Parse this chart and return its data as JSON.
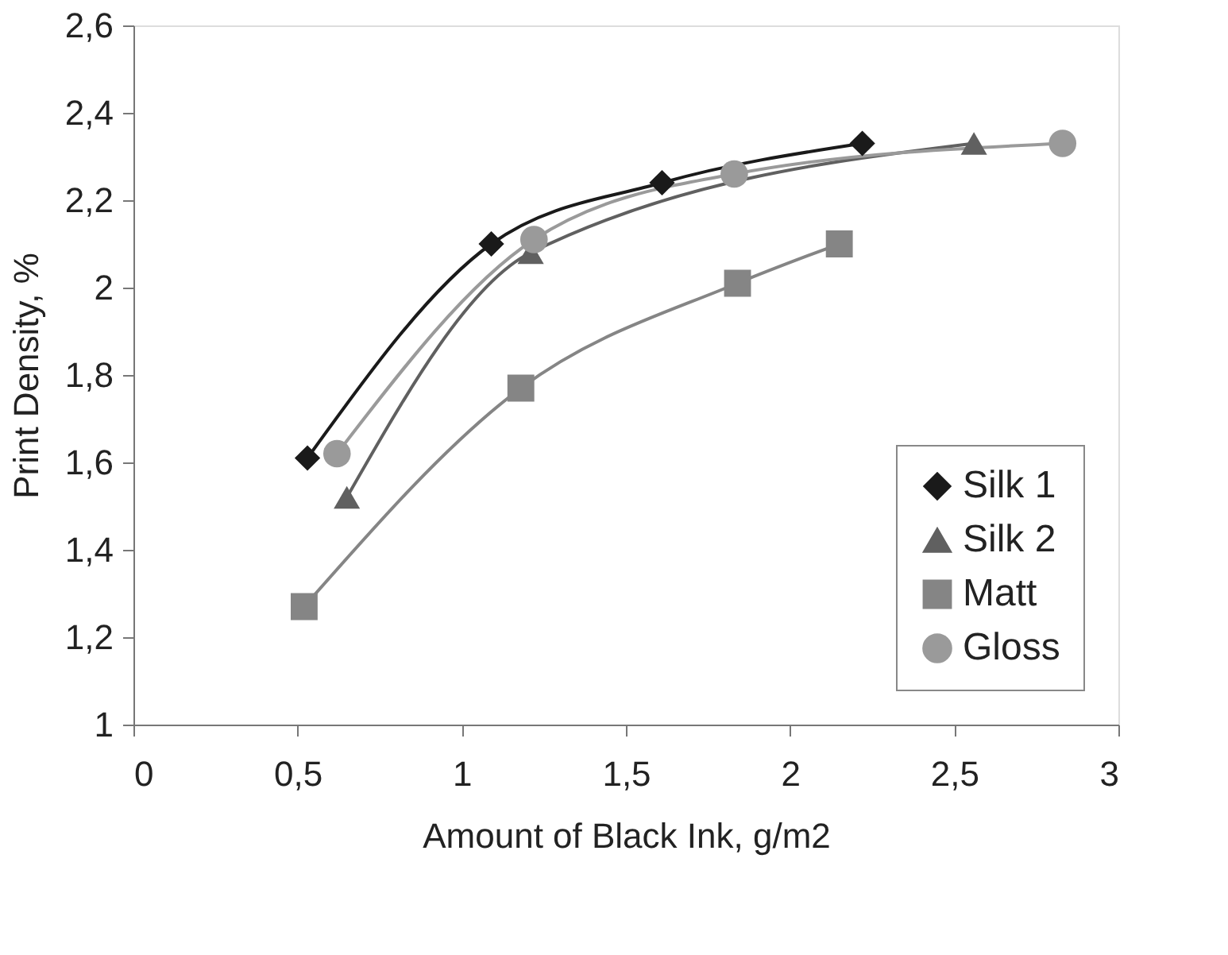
{
  "chart_data": {
    "type": "line",
    "xlabel": "Amount of Black Ink, g/m2",
    "ylabel": "Print Density, %",
    "xlim": [
      0,
      3
    ],
    "xticks": [
      0,
      {
        "value": 0.5,
        "label": "0,5"
      },
      1,
      {
        "value": 1.5,
        "label": "1,5"
      },
      2,
      {
        "value": 2.5,
        "label": "2,5"
      },
      3
    ],
    "ylim": [
      1,
      2.6
    ],
    "yticks": [
      1,
      {
        "value": 1.2,
        "label": "1,2"
      },
      {
        "value": 1.4,
        "label": "1,4"
      },
      {
        "value": 1.6,
        "label": "1,6"
      },
      {
        "value": 1.8,
        "label": "1,8"
      },
      2,
      {
        "value": 2.2,
        "label": "2,2"
      },
      {
        "value": 2.4,
        "label": "2,4"
      },
      {
        "value": 2.6,
        "label": "2,6"
      }
    ],
    "grid": false,
    "legend": "bottom right",
    "line_style": "solid",
    "series": [
      {
        "name": "Silk 1",
        "color": "#1a1a1a",
        "marker": "diamond",
        "x": [
          0.53,
          1.09,
          1.61,
          2.22
        ],
        "values": [
          1.61,
          2.1,
          2.24,
          2.33
        ]
      },
      {
        "name": "Silk 2",
        "color": "#606060",
        "marker": "triangle",
        "x": [
          0.65,
          1.21,
          2.56
        ],
        "values": [
          1.52,
          2.08,
          2.33
        ]
      },
      {
        "name": "Matt",
        "color": "#858585",
        "marker": "square",
        "x": [
          0.52,
          1.18,
          1.84,
          2.15
        ],
        "values": [
          1.27,
          1.77,
          2.01,
          2.1
        ]
      },
      {
        "name": "Gloss",
        "color": "#9a9a9a",
        "marker": "circle",
        "x": [
          0.62,
          1.22,
          1.83,
          2.83
        ],
        "values": [
          1.62,
          2.11,
          2.26,
          2.33
        ]
      }
    ]
  }
}
